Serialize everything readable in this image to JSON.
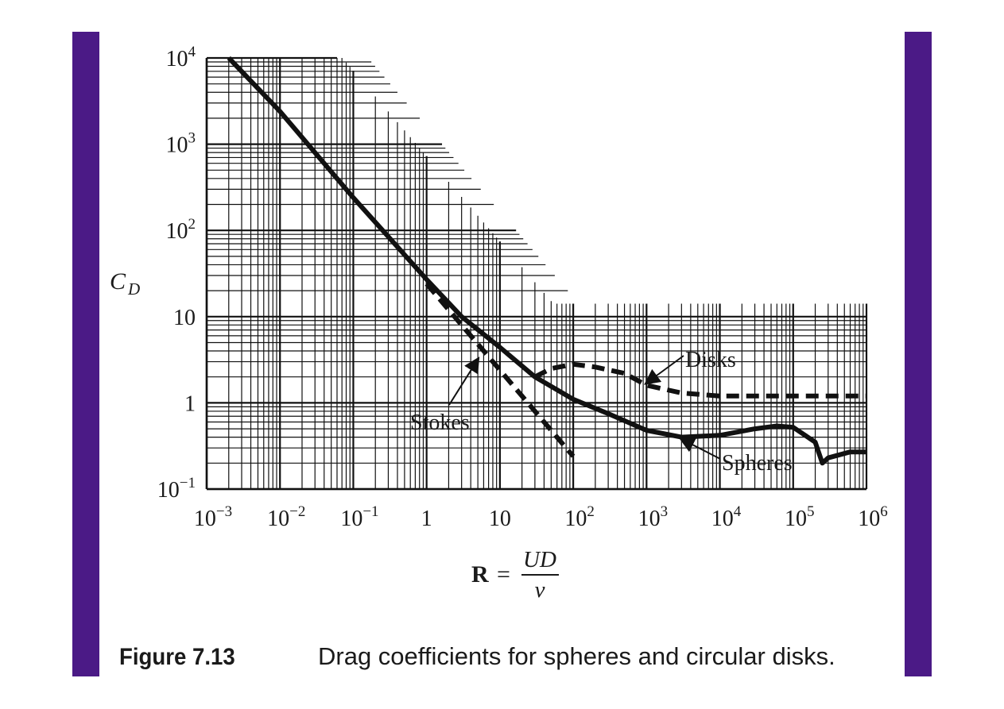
{
  "colors": {
    "frame_band": "#4b1a86",
    "ink": "#111111",
    "paper": "#ffffff"
  },
  "chart_data": {
    "type": "line",
    "xscale": "log",
    "yscale": "log",
    "xlim": [
      0.001,
      1000000
    ],
    "ylim": [
      0.1,
      10000
    ],
    "grid": true,
    "xlabel": {
      "lhs": "R",
      "eq": "=",
      "num": "UD",
      "den": "ν"
    },
    "ylabel": {
      "main": "C",
      "sub": "D"
    },
    "x_ticks": [
      {
        "value": 0.001,
        "base": "10",
        "exp": "−3"
      },
      {
        "value": 0.01,
        "base": "10",
        "exp": "−2"
      },
      {
        "value": 0.1,
        "base": "10",
        "exp": "−1"
      },
      {
        "value": 1,
        "base": "1",
        "exp": ""
      },
      {
        "value": 10,
        "base": "10",
        "exp": ""
      },
      {
        "value": 100,
        "base": "10",
        "exp": "2"
      },
      {
        "value": 1000,
        "base": "10",
        "exp": "3"
      },
      {
        "value": 10000,
        "base": "10",
        "exp": "4"
      },
      {
        "value": 100000,
        "base": "10",
        "exp": "5"
      },
      {
        "value": 1000000,
        "base": "10",
        "exp": "6"
      }
    ],
    "y_ticks": [
      {
        "value": 0.1,
        "base": "10",
        "exp": "−1"
      },
      {
        "value": 1,
        "base": "1",
        "exp": ""
      },
      {
        "value": 10,
        "base": "10",
        "exp": ""
      },
      {
        "value": 100,
        "base": "10",
        "exp": "2"
      },
      {
        "value": 1000,
        "base": "10",
        "exp": "3"
      },
      {
        "value": 10000,
        "base": "10",
        "exp": "4"
      }
    ],
    "series": [
      {
        "name": "Spheres",
        "style": "solid",
        "x": [
          0.002,
          0.01,
          0.1,
          1,
          3,
          10,
          30,
          100,
          300,
          1000,
          3000,
          10000,
          30000,
          60000,
          100000,
          200000,
          250000,
          300000,
          600000,
          1000000
        ],
        "y": [
          10000,
          2400,
          240,
          27,
          10,
          4.4,
          2.0,
          1.1,
          0.75,
          0.48,
          0.4,
          0.42,
          0.5,
          0.54,
          0.52,
          0.35,
          0.2,
          0.23,
          0.27,
          0.27
        ]
      },
      {
        "name": "Disks",
        "style": "dashed",
        "x": [
          30,
          50,
          100,
          200,
          500,
          1000,
          3000,
          10000,
          100000,
          1000000
        ],
        "y": [
          2.0,
          2.5,
          2.8,
          2.6,
          2.2,
          1.6,
          1.3,
          1.2,
          1.2,
          1.2
        ]
      },
      {
        "name": "Stokes",
        "style": "dashed",
        "x": [
          1,
          10,
          100
        ],
        "y": [
          24,
          2.4,
          0.24
        ]
      }
    ],
    "annotations": [
      {
        "text": "Disks",
        "target": {
          "x": 1000,
          "y": 1.7
        }
      },
      {
        "text": "Stokes",
        "target": {
          "x": 5,
          "y": 3.2
        }
      },
      {
        "text": "Spheres",
        "target": {
          "x": 3000,
          "y": 0.38
        }
      }
    ]
  },
  "caption": {
    "label": "Figure 7.13",
    "text": "Drag coefficients for spheres and circular disks."
  }
}
